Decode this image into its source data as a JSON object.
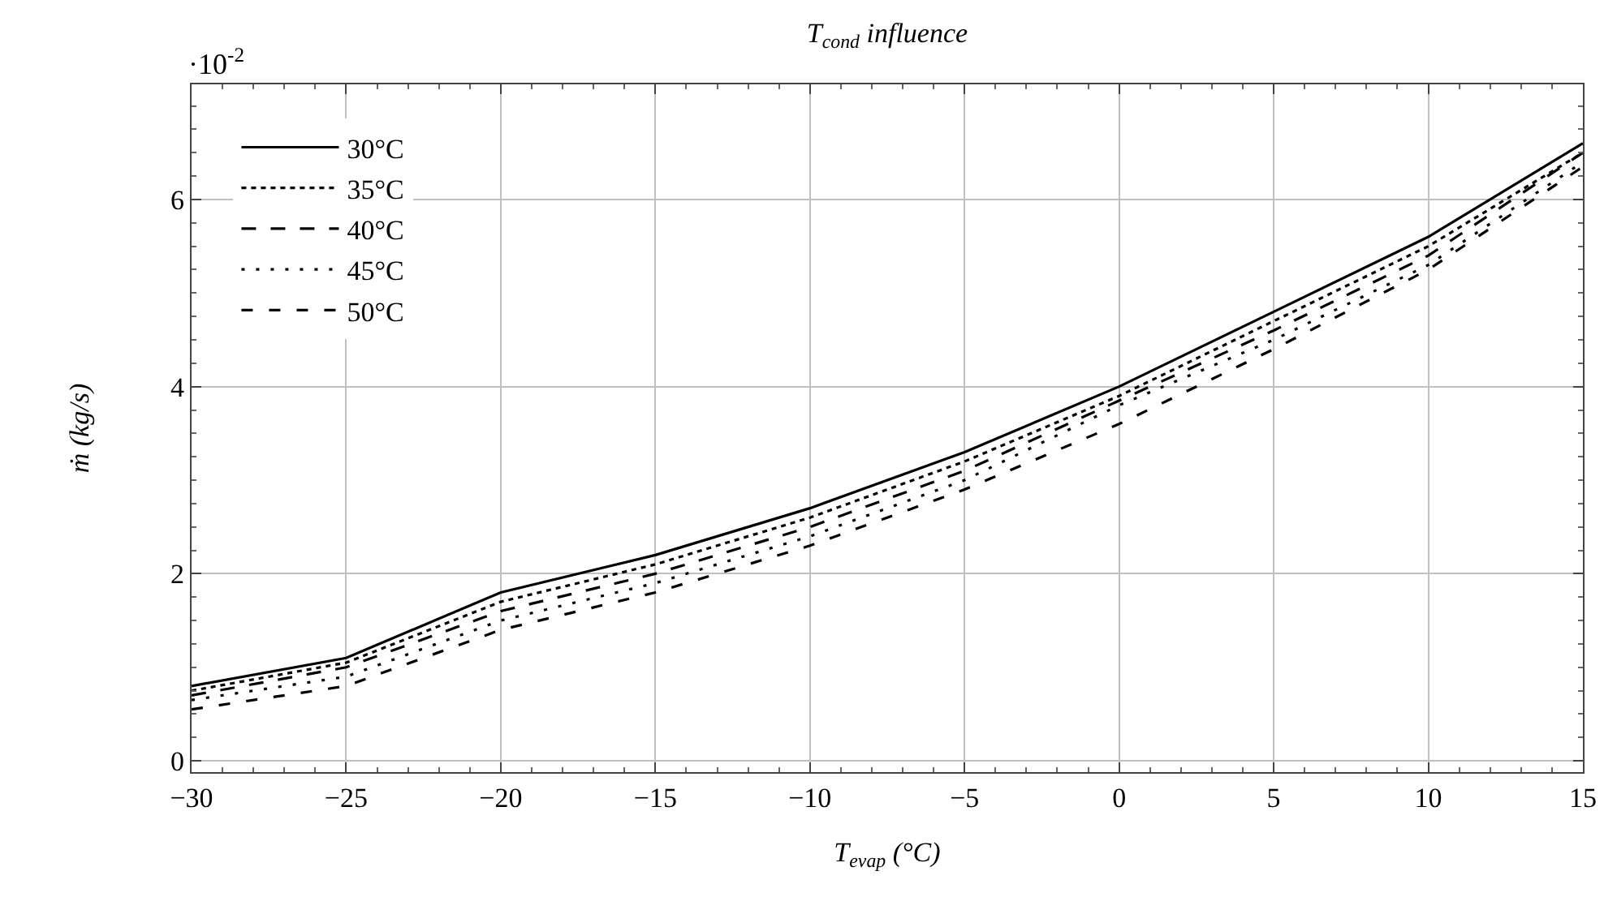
{
  "chart_data": {
    "type": "line",
    "title": "T$_{cond}$ influence",
    "xlabel": "T$_{evap}$ (°C)",
    "ylabel": "ṁ (kg/s)",
    "annotations": [
      "·10$^{-2}$"
    ],
    "x": [
      -30,
      -25,
      -20,
      -15,
      -10,
      -5,
      0,
      5,
      10,
      15
    ],
    "series": [
      {
        "name": "30°C",
        "color": "#000000",
        "line_style": "solid",
        "values": [
          0.8,
          1.1,
          1.8,
          2.2,
          2.7,
          3.3,
          4.0,
          4.8,
          5.6,
          6.6
        ]
      },
      {
        "name": "35°C",
        "color": "#000000",
        "line_style": "dotted",
        "values": [
          0.75,
          1.05,
          1.7,
          2.1,
          2.6,
          3.2,
          3.9,
          4.7,
          5.5,
          6.5
        ]
      },
      {
        "name": "40°C",
        "color": "#000000",
        "line_style": "dashed",
        "values": [
          0.7,
          1.0,
          1.6,
          2.0,
          2.5,
          3.1,
          3.85,
          4.6,
          5.4,
          6.5
        ]
      },
      {
        "name": "45°C",
        "color": "#000000",
        "line_style": "loosely dotted",
        "values": [
          0.65,
          0.9,
          1.5,
          1.9,
          2.4,
          3.0,
          3.8,
          4.5,
          5.3,
          6.4
        ]
      },
      {
        "name": "50°C",
        "color": "#000000",
        "line_style": "loosely dashed",
        "values": [
          0.55,
          0.8,
          1.4,
          1.8,
          2.3,
          2.9,
          3.6,
          4.4,
          5.25,
          6.35
        ]
      }
    ],
    "xlim": [
      -30,
      15
    ],
    "xticks": [
      -30,
      -25,
      -20,
      -15,
      -10,
      -5,
      0,
      5,
      10,
      15
    ],
    "ylim": [
      -0.12,
      7.23
    ],
    "yticks": [
      0,
      2,
      4,
      6
    ],
    "grid": true,
    "legend": "top left",
    "marker": "none"
  }
}
